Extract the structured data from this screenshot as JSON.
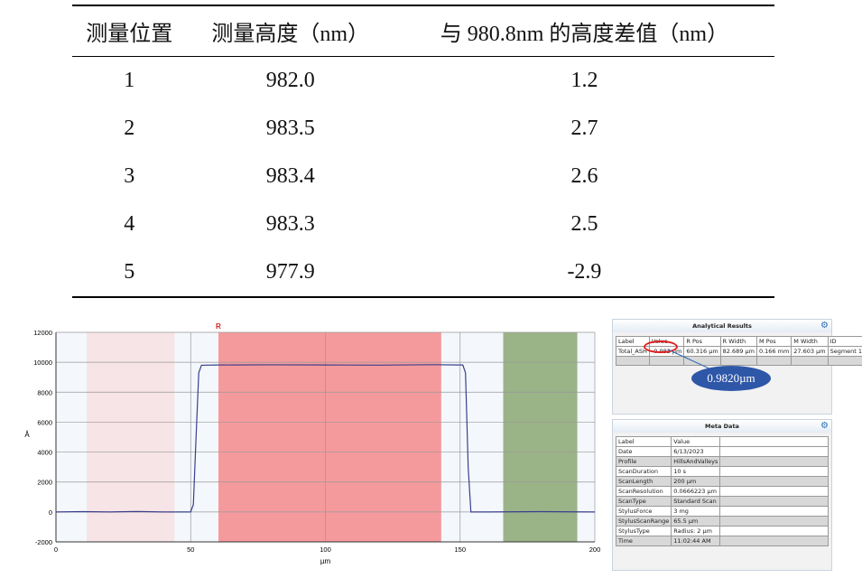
{
  "table": {
    "headers": [
      "测量位置",
      "测量高度（nm）",
      "与 980.8nm 的高度差值（nm）"
    ],
    "rows": [
      [
        "1",
        "982.0",
        "1.2"
      ],
      [
        "2",
        "983.5",
        "2.7"
      ],
      [
        "3",
        "983.4",
        "2.6"
      ],
      [
        "4",
        "983.3",
        "2.5"
      ],
      [
        "5",
        "977.9",
        "-2.9"
      ]
    ]
  },
  "chart_data": {
    "type": "line",
    "xlabel": "µm",
    "ylabel": "Å",
    "xlim": [
      0,
      200
    ],
    "ylim": [
      -2000,
      12000
    ],
    "xticks": [
      0,
      50,
      100,
      150,
      200
    ],
    "yticks": [
      -2000,
      0,
      2000,
      4000,
      6000,
      8000,
      10000,
      12000
    ],
    "grid": true,
    "regions": [
      {
        "from": 11.4,
        "to": 44,
        "color": "#f7e4e6"
      },
      {
        "from": 60.3,
        "to": 143,
        "color": "#f59a9c",
        "label": "R"
      },
      {
        "from": 166,
        "to": 193.5,
        "color": "#9bb487"
      }
    ],
    "x": [
      0,
      10,
      20,
      30,
      40,
      50,
      51,
      52,
      53,
      54,
      60,
      80,
      100,
      120,
      140,
      151,
      152,
      153,
      154,
      160,
      180,
      200
    ],
    "y": [
      0,
      20,
      0,
      30,
      0,
      0,
      500,
      5000,
      9300,
      9800,
      9820,
      9830,
      9820,
      9810,
      9840,
      9820,
      9300,
      3000,
      0,
      0,
      20,
      0
    ],
    "line_color": "#3a3f8a"
  },
  "analytical": {
    "title": "Analytical Results",
    "headers": [
      "Label",
      "Value",
      "R Pos",
      "R Width",
      "M Pos",
      "M Width",
      "ID"
    ],
    "row": [
      "Total_ASH",
      "-0.982 µm",
      "60.316 µm",
      "82.689 µm",
      "0.166 mm",
      "27.603 µm",
      "Segment 1"
    ],
    "callout": "0.9820µm"
  },
  "meta": {
    "title": "Meta Data",
    "headers": [
      "Label",
      "Value"
    ],
    "rows": [
      [
        "Date",
        "6/13/2023"
      ],
      [
        "Profile",
        "HillsAndValleys"
      ],
      [
        "ScanDuration",
        "10 s"
      ],
      [
        "ScanLength",
        "200 µm"
      ],
      [
        "ScanResolution",
        "0.0666223 µm"
      ],
      [
        "ScanType",
        "Standard Scan"
      ],
      [
        "StylusForce",
        "3 mg"
      ],
      [
        "StylusScanRange",
        "65.5 µm"
      ],
      [
        "StylusType",
        "Radius: 2 µm"
      ],
      [
        "Time",
        "11:02:44 AM"
      ]
    ]
  }
}
